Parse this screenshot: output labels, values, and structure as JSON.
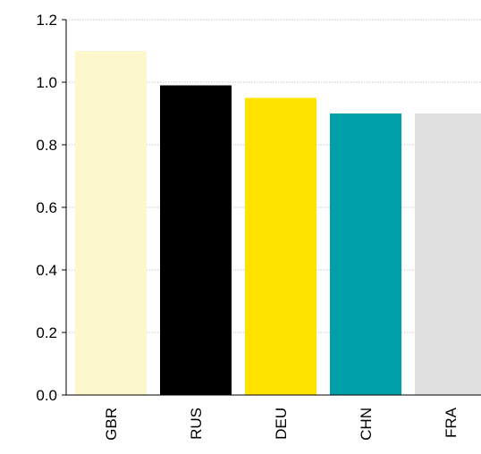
{
  "chart_data": {
    "type": "bar",
    "title": "",
    "xlabel": "",
    "ylabel": "",
    "categories": [
      "GBR",
      "RUS",
      "DEU",
      "CHN",
      "FRA"
    ],
    "values": [
      1.1,
      0.99,
      0.95,
      0.9,
      0.9
    ],
    "colors": [
      "#fcf8cc",
      "#000000",
      "#ffe300",
      "#00a0aa",
      "#e0e0e0"
    ],
    "ylim": [
      0,
      1.2
    ],
    "yticks": [
      "0.0",
      "0.2",
      "0.4",
      "0.6",
      "0.8",
      "1.0",
      "1.2"
    ],
    "grid": true,
    "legend": "none"
  }
}
